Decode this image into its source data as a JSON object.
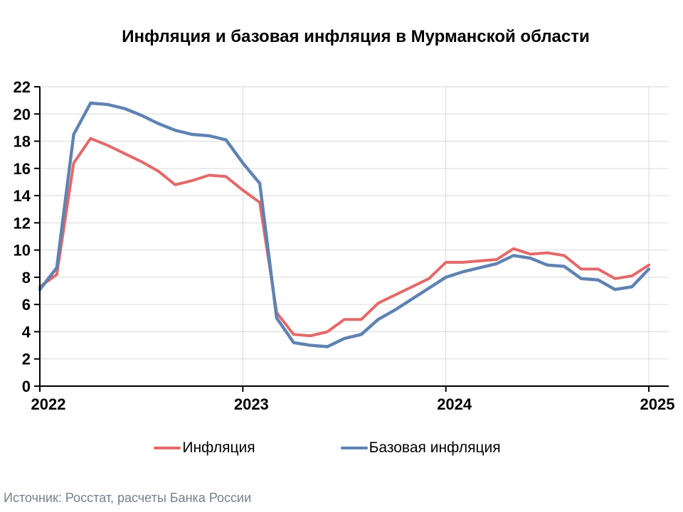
{
  "header": {
    "title": "Инфляция и базовая инфляция в Мурманской области"
  },
  "source": {
    "text": "Источник: Росстат, расчеты Банка России"
  },
  "legend": {
    "items": [
      {
        "label": "Инфляция",
        "color": "#e36969"
      },
      {
        "label": "Базовая инфляция",
        "color": "#5f82b2"
      }
    ]
  },
  "colors": {
    "inflation_line": "#e36969",
    "core_inflation_line": "#5f82b2",
    "gridline": "#d9d9d9",
    "axis": "#000000",
    "source_text": "#76808a"
  },
  "chart_data": {
    "type": "line",
    "title": "Инфляция и базовая инфляция в Мурманской области",
    "xlabel": "",
    "ylabel": "",
    "ylim": [
      0,
      22
    ],
    "grid": true,
    "legend_position": "bottom",
    "x": [
      "2022-01",
      "2022-02",
      "2022-03",
      "2022-04",
      "2022-05",
      "2022-06",
      "2022-07",
      "2022-08",
      "2022-09",
      "2022-10",
      "2022-11",
      "2022-12",
      "2023-01",
      "2023-02",
      "2023-03",
      "2023-04",
      "2023-05",
      "2023-06",
      "2023-07",
      "2023-08",
      "2023-09",
      "2023-10",
      "2023-11",
      "2023-12",
      "2024-01",
      "2024-02",
      "2024-03",
      "2024-04",
      "2024-05",
      "2024-06",
      "2024-07",
      "2024-08",
      "2024-09",
      "2024-10",
      "2024-11",
      "2024-12",
      "2025-01"
    ],
    "xticks": [
      {
        "label": "2022",
        "index": 0
      },
      {
        "label": "2023",
        "index": 12
      },
      {
        "label": "2024",
        "index": 24
      },
      {
        "label": "2025",
        "index": 36
      }
    ],
    "yticks": [
      0,
      2,
      4,
      6,
      8,
      10,
      12,
      14,
      16,
      18,
      20,
      22
    ],
    "series": [
      {
        "name": "Инфляция",
        "color": "#e36969",
        "values": [
          7.3,
          8.2,
          16.4,
          18.2,
          17.7,
          17.1,
          16.5,
          15.8,
          14.8,
          15.1,
          15.5,
          15.4,
          14.4,
          13.5,
          5.4,
          3.8,
          3.7,
          4.0,
          4.9,
          4.9,
          6.1,
          6.7,
          7.3,
          7.9,
          9.1,
          9.1,
          9.2,
          9.3,
          10.1,
          9.7,
          9.8,
          9.6,
          8.6,
          8.6,
          7.9,
          8.1,
          8.9
        ]
      },
      {
        "name": "Базовая инфляция",
        "color": "#5f82b2",
        "values": [
          7.1,
          8.7,
          18.5,
          20.8,
          20.7,
          20.4,
          19.9,
          19.3,
          18.8,
          18.5,
          18.4,
          18.1,
          16.4,
          14.9,
          5.0,
          3.2,
          3.0,
          2.9,
          3.5,
          3.8,
          4.9,
          5.6,
          6.4,
          7.2,
          8.0,
          8.4,
          8.7,
          9.0,
          9.6,
          9.4,
          8.9,
          8.8,
          7.9,
          7.8,
          7.1,
          7.3,
          8.6
        ]
      }
    ]
  }
}
